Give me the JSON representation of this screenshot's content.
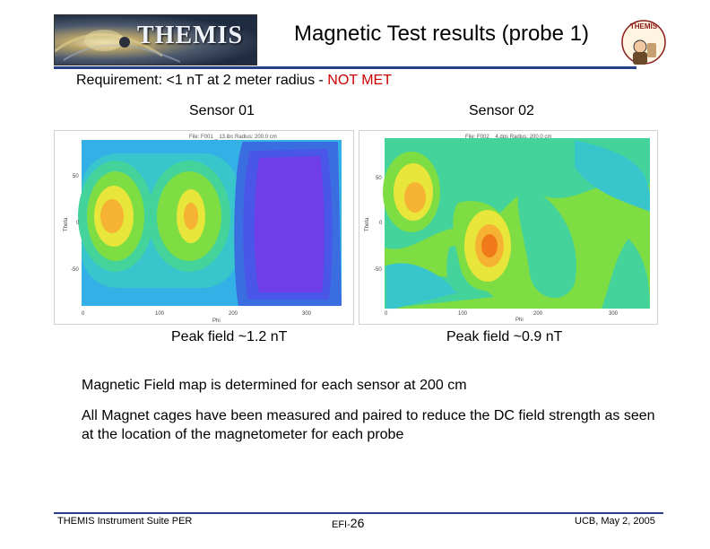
{
  "header": {
    "logo_text": "THEMIS",
    "title": "Magnetic Test results (probe 1)",
    "mascot_text": "THEMIS"
  },
  "requirement": {
    "prefix": "Requirement:  <1 n",
    "unit": "T at 2 meter radius -  ",
    "status": "NOT MET"
  },
  "colors": {
    "accent": "#27408b",
    "status_red": "#cc0000"
  },
  "sensors": [
    {
      "label": "Sensor 01",
      "plot_header": "File: F001 _ 13.ibc    Radius: 200.0 cm",
      "x_label": "Phi",
      "y_label": "Theta",
      "x_ticks": [
        "0",
        "100",
        "200",
        "300"
      ],
      "y_ticks": [
        "50",
        "0",
        "-50"
      ],
      "peak": "Peak field ~1.2 nT"
    },
    {
      "label": "Sensor 02",
      "plot_header": "File: F002 _ 4.dps    Radius: 200.0 cm",
      "x_label": "Phi",
      "y_label": "Theta",
      "x_ticks": [
        "0",
        "100",
        "200",
        "300"
      ],
      "y_ticks": [
        "50",
        "0",
        "-50"
      ],
      "peak": "Peak field ~0.9 nT"
    }
  ],
  "body": {
    "line1": "Magnetic Field map is determined for each sensor at 200 cm",
    "line2": "All Magnet cages have been measured and paired to reduce the DC field strength as seen at the location of the magnetometer for each probe"
  },
  "footer": {
    "left": "THEMIS Instrument Suite PER",
    "center_prefix": "EFI-",
    "center_num": "26",
    "right": "UCB, May 2, 2005"
  }
}
